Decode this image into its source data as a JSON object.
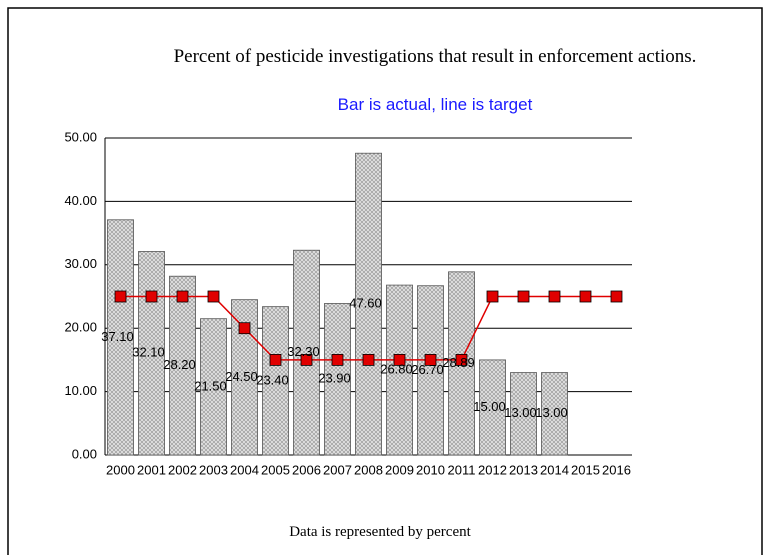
{
  "chart_data": {
    "type": "bar_line",
    "title": "Percent of pesticide investigations that result in enforcement actions.",
    "subtitle": "Bar is actual, line is target",
    "footer": "Data is represented by percent",
    "categories": [
      "2000",
      "2001",
      "2002",
      "2003",
      "2004",
      "2005",
      "2006",
      "2007",
      "2008",
      "2009",
      "2010",
      "2011",
      "2012",
      "2013",
      "2014",
      "2015",
      "2016"
    ],
    "series": [
      {
        "type": "bar",
        "color": "#c8c8c8",
        "values": [
          37.1,
          32.1,
          28.2,
          21.5,
          24.5,
          23.4,
          32.3,
          23.9,
          47.6,
          26.8,
          26.7,
          28.89,
          15,
          13,
          13,
          null,
          null
        ],
        "value_labels": [
          "37.10",
          "32.10",
          "28.20",
          "21.50",
          "24.50",
          "23.40",
          "32.30",
          "23.90",
          "47.60",
          "26.80",
          "26.70",
          "28.89",
          "15.00",
          "13.00",
          "13.00",
          null,
          null
        ]
      },
      {
        "type": "line",
        "color": "#e00000",
        "values": [
          25,
          25,
          25,
          25,
          20,
          15,
          15,
          15,
          15,
          15,
          15,
          15,
          25,
          25,
          25,
          25,
          25
        ]
      }
    ],
    "ylim": [
      0,
      50
    ],
    "yticks": [
      {
        "value": 0,
        "label": "0.00"
      },
      {
        "value": 10,
        "label": "10.00"
      },
      {
        "value": 20,
        "label": "20.00"
      },
      {
        "value": 30,
        "label": "30.00"
      },
      {
        "value": 40,
        "label": "40.00"
      },
      {
        "value": 50,
        "label": "50.00"
      }
    ],
    "grid": true
  }
}
